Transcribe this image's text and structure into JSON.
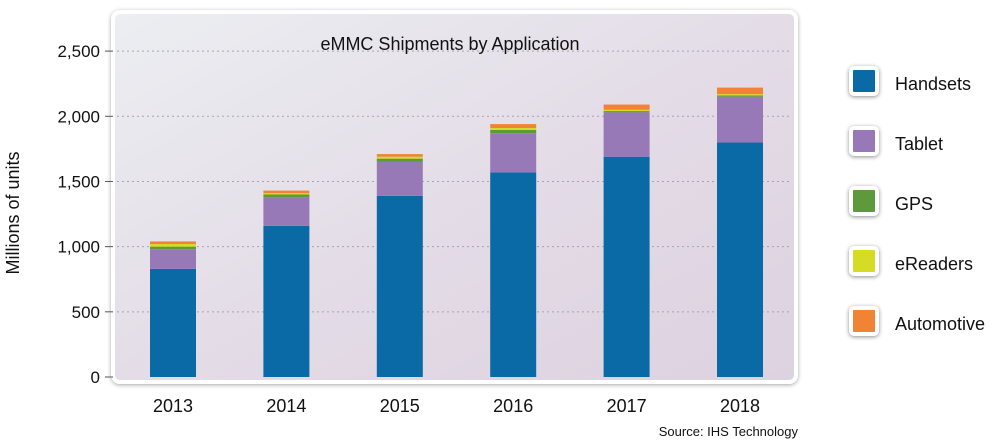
{
  "chart_data": {
    "type": "bar",
    "stacked": true,
    "title": "eMMC Shipments by Application",
    "ylabel": "Millions of units",
    "xlabel": "",
    "categories": [
      "2013",
      "2014",
      "2015",
      "2016",
      "2017",
      "2018"
    ],
    "ylim": [
      0,
      2800
    ],
    "yticks": [
      0,
      500,
      1000,
      1500,
      2000,
      2500
    ],
    "ytick_labels": [
      "0",
      "500",
      "1,000",
      "1,500",
      "2,000",
      "2,500"
    ],
    "grid": "horizontal dashed",
    "legend_position": "right",
    "series": [
      {
        "name": "Handsets",
        "color": "#0a6aa6",
        "values": [
          830,
          1160,
          1390,
          1570,
          1690,
          1800
        ]
      },
      {
        "name": "Tablet",
        "color": "#9779b8",
        "values": [
          150,
          220,
          260,
          300,
          340,
          350
        ]
      },
      {
        "name": "GPS",
        "color": "#5d9a3c",
        "values": [
          20,
          20,
          25,
          25,
          10,
          10
        ]
      },
      {
        "name": "eReaders",
        "color": "#d6dc25",
        "values": [
          20,
          10,
          15,
          15,
          10,
          10
        ]
      },
      {
        "name": "Automotive",
        "color": "#f08434",
        "values": [
          20,
          20,
          20,
          30,
          40,
          50
        ]
      }
    ]
  },
  "source": "Source: IHS Technology"
}
